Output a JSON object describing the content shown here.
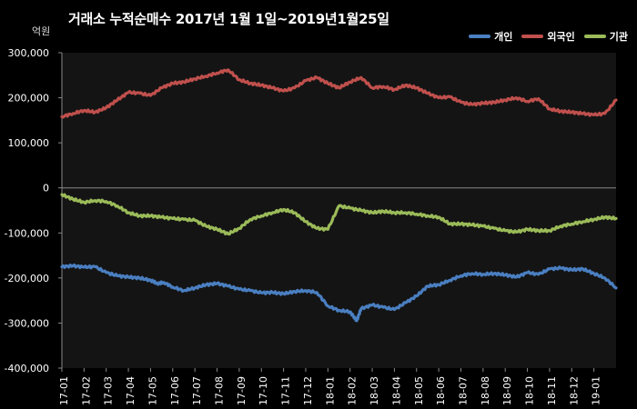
{
  "chart_data": {
    "type": "line",
    "title": "거래소 누적순매수 2017년 1월 1일~2019년1월25일",
    "ylabel": "억원",
    "xlabel": "",
    "ylim": [
      -400000,
      300000
    ],
    "ytick_values": [
      300000,
      200000,
      100000,
      0,
      -100000,
      -200000,
      -300000,
      -400000
    ],
    "ytick_labels": [
      "300,000",
      "200,000",
      "100,000",
      "0",
      "-100,000",
      "-200,000",
      "-300,000",
      "-400,000"
    ],
    "categories": [
      "17-01",
      "17-02",
      "17-03",
      "17-04",
      "17-05",
      "17-06",
      "17-07",
      "17-08",
      "17-09",
      "17-10",
      "17-11",
      "17-12",
      "18-01",
      "18-02",
      "18-03",
      "18-04",
      "18-05",
      "18-06",
      "18-07",
      "18-08",
      "18-09",
      "18-10",
      "18-11",
      "18-12",
      "19-01"
    ],
    "legend_position": "top-right",
    "grid": false,
    "series": [
      {
        "name": "개인",
        "color": "#4a7fc1",
        "x": [
          0,
          0.5,
          1,
          1.5,
          2,
          2.5,
          3,
          3.5,
          4,
          4.3,
          4.6,
          5,
          5.5,
          6,
          6.5,
          7,
          7.5,
          8,
          8.5,
          9,
          9.5,
          10,
          10.5,
          11,
          11.5,
          12,
          12.5,
          13,
          13.3,
          13.5,
          14,
          14.5,
          15,
          15.5,
          16,
          16.5,
          17,
          17.5,
          18,
          18.5,
          19,
          19.5,
          20,
          20.5,
          21,
          21.5,
          22,
          22.5,
          23,
          23.5,
          24,
          24.5,
          25
        ],
        "values": [
          -175000,
          -173000,
          -176000,
          -175000,
          -188000,
          -195000,
          -198000,
          -200000,
          -205000,
          -212000,
          -210000,
          -220000,
          -228000,
          -222000,
          -215000,
          -212000,
          -218000,
          -225000,
          -228000,
          -233000,
          -232000,
          -235000,
          -230000,
          -228000,
          -232000,
          -262000,
          -272000,
          -275000,
          -295000,
          -268000,
          -260000,
          -265000,
          -270000,
          -255000,
          -240000,
          -218000,
          -215000,
          -205000,
          -195000,
          -190000,
          -192000,
          -190000,
          -193000,
          -198000,
          -188000,
          -192000,
          -180000,
          -178000,
          -182000,
          -180000,
          -190000,
          -200000,
          -222000
        ]
      },
      {
        "name": "외국인",
        "color": "#c0504d",
        "x": [
          0,
          0.5,
          1,
          1.5,
          2,
          2.5,
          3,
          3.5,
          4,
          4.5,
          5,
          5.5,
          6,
          6.5,
          7,
          7.5,
          8,
          8.5,
          9,
          9.5,
          10,
          10.5,
          11,
          11.5,
          12,
          12.5,
          13,
          13.5,
          14,
          14.5,
          15,
          15.5,
          16,
          16.5,
          17,
          17.5,
          18,
          18.5,
          19,
          19.5,
          20,
          20.5,
          21,
          21.5,
          22,
          22.5,
          23,
          23.5,
          24,
          24.5,
          25
        ],
        "values": [
          158000,
          165000,
          172000,
          168000,
          178000,
          195000,
          212000,
          210000,
          205000,
          222000,
          232000,
          235000,
          242000,
          248000,
          255000,
          262000,
          240000,
          232000,
          228000,
          222000,
          215000,
          222000,
          238000,
          245000,
          232000,
          222000,
          235000,
          245000,
          222000,
          225000,
          218000,
          228000,
          222000,
          210000,
          200000,
          202000,
          190000,
          185000,
          188000,
          190000,
          195000,
          200000,
          192000,
          198000,
          175000,
          170000,
          168000,
          165000,
          162000,
          165000,
          195000
        ]
      },
      {
        "name": "기관",
        "color": "#9bbb59",
        "x": [
          0,
          0.5,
          1,
          1.5,
          2,
          2.5,
          3,
          3.5,
          4,
          4.5,
          5,
          5.5,
          6,
          6.5,
          7,
          7.5,
          8,
          8.5,
          9,
          9.5,
          10,
          10.5,
          11,
          11.5,
          12,
          12.5,
          13,
          13.5,
          14,
          14.5,
          15,
          15.5,
          16,
          16.5,
          17,
          17.5,
          18,
          18.5,
          19,
          19.5,
          20,
          20.5,
          21,
          21.5,
          22,
          22.5,
          23,
          23.5,
          24,
          24.5,
          25
        ],
        "values": [
          -15000,
          -25000,
          -32000,
          -28000,
          -30000,
          -40000,
          -55000,
          -62000,
          -62000,
          -65000,
          -68000,
          -70000,
          -72000,
          -85000,
          -92000,
          -102000,
          -90000,
          -70000,
          -62000,
          -55000,
          -48000,
          -55000,
          -75000,
          -90000,
          -92000,
          -40000,
          -45000,
          -50000,
          -55000,
          -52000,
          -55000,
          -55000,
          -58000,
          -62000,
          -65000,
          -80000,
          -80000,
          -82000,
          -85000,
          -90000,
          -95000,
          -98000,
          -92000,
          -95000,
          -95000,
          -85000,
          -80000,
          -75000,
          -70000,
          -65000,
          -68000
        ]
      }
    ]
  }
}
